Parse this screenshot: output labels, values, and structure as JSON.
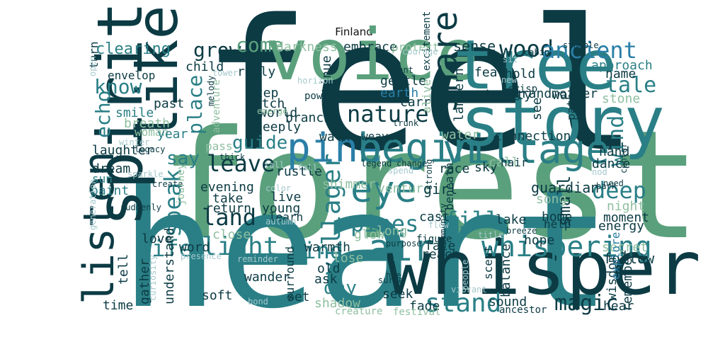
{
  "title": "Finland",
  "palette": {
    "dark": "#0c3b44",
    "teal": "#2a7f86",
    "green": "#5aa07c",
    "blue": "#2a7fa7",
    "light": "#8fbfa0",
    "pale": "#a5c9cd"
  },
  "chart_data": {
    "type": "wordcloud",
    "title": "Finland",
    "words": [
      {
        "text": "forest",
        "weight": 100,
        "color": "green"
      },
      {
        "text": "feel",
        "weight": 80,
        "color": "dark"
      },
      {
        "text": "heart",
        "weight": 72,
        "color": "teal"
      },
      {
        "text": "whisper",
        "weight": 62,
        "color": "dark"
      },
      {
        "text": "voice",
        "weight": 50,
        "color": "green"
      },
      {
        "text": "tree",
        "weight": 48,
        "color": "teal"
      },
      {
        "text": "story",
        "weight": 48,
        "color": "teal"
      },
      {
        "text": "spirit",
        "weight": 44,
        "color": "dark"
      },
      {
        "text": "like",
        "weight": 40,
        "color": "dark"
      },
      {
        "text": "listen",
        "weight": 30,
        "color": "dark"
      },
      {
        "text": "village",
        "weight": 28,
        "color": "teal"
      },
      {
        "text": "pine",
        "weight": 28,
        "color": "blue"
      },
      {
        "text": "begin",
        "weight": 28,
        "color": "teal"
      },
      {
        "text": "air",
        "weight": 26,
        "color": "teal"
      },
      {
        "text": "eye",
        "weight": 26,
        "color": "teal"
      },
      {
        "text": "share",
        "weight": 24,
        "color": "dark"
      },
      {
        "text": "whispering",
        "weight": 20,
        "color": "teal"
      },
      {
        "text": "stand",
        "weight": 18,
        "color": "teal"
      },
      {
        "text": "villager",
        "weight": 18,
        "color": "teal"
      },
      {
        "text": "light",
        "weight": 18,
        "color": "teal"
      },
      {
        "text": "speak",
        "weight": 16,
        "color": "teal"
      },
      {
        "text": "nature",
        "weight": 16,
        "color": "dark"
      },
      {
        "text": "pines",
        "weight": 16,
        "color": "teal"
      },
      {
        "text": "fill",
        "weight": 16,
        "color": "teal"
      },
      {
        "text": "land",
        "weight": 16,
        "color": "dark"
      },
      {
        "text": "leave",
        "weight": 16,
        "color": "dark"
      },
      {
        "text": "find",
        "weight": 16,
        "color": "teal"
      },
      {
        "text": "life",
        "weight": 16,
        "color": "teal"
      },
      {
        "text": "deep",
        "weight": 16,
        "color": "teal"
      },
      {
        "text": "wood",
        "weight": 16,
        "color": "dark"
      },
      {
        "text": "ancient",
        "weight": 16,
        "color": "blue"
      },
      {
        "text": "magic",
        "weight": 15,
        "color": "dark"
      },
      {
        "text": "tale",
        "weight": 15,
        "color": "teal"
      },
      {
        "text": "wind",
        "weight": 15,
        "color": "teal"
      },
      {
        "text": "echo",
        "weight": 14,
        "color": "teal"
      },
      {
        "text": "know",
        "weight": 14,
        "color": "teal"
      },
      {
        "text": "place",
        "weight": 14,
        "color": "teal"
      },
      {
        "text": "grow",
        "weight": 14,
        "color": "dark"
      },
      {
        "text": "come",
        "weight": 14,
        "color": "green"
      },
      {
        "text": "guide",
        "weight": 13,
        "color": "teal"
      },
      {
        "text": "say",
        "weight": 13,
        "color": "teal"
      },
      {
        "text": "day",
        "weight": 13,
        "color": "teal"
      },
      {
        "text": "small",
        "weight": 12,
        "color": "dark"
      },
      {
        "text": "clearing",
        "weight": 11,
        "color": "teal"
      },
      {
        "text": "darkness",
        "weight": 9,
        "color": "light"
      },
      {
        "text": "embrace",
        "weight": 9,
        "color": "dark"
      },
      {
        "text": "protect",
        "weight": 8,
        "color": "light"
      },
      {
        "text": "sense",
        "weight": 10,
        "color": "dark"
      },
      {
        "text": "approach",
        "weight": 9,
        "color": "teal"
      },
      {
        "text": "name",
        "weight": 9,
        "color": "dark"
      },
      {
        "text": "stone",
        "weight": 9,
        "color": "light"
      },
      {
        "text": "child",
        "weight": 9,
        "color": "dark"
      },
      {
        "text": "past",
        "weight": 9,
        "color": "dark"
      },
      {
        "text": "smile",
        "weight": 9,
        "color": "teal"
      },
      {
        "text": "breath",
        "weight": 9,
        "color": "light"
      },
      {
        "text": "woman",
        "weight": 8,
        "color": "light"
      },
      {
        "text": "year",
        "weight": 9,
        "color": "teal"
      },
      {
        "text": "laughter",
        "weight": 9,
        "color": "dark"
      },
      {
        "text": "dream",
        "weight": 9,
        "color": "dark"
      },
      {
        "text": "sun",
        "weight": 8,
        "color": "teal"
      },
      {
        "text": "paint",
        "weight": 9,
        "color": "teal"
      },
      {
        "text": "love",
        "weight": 9,
        "color": "dark"
      },
      {
        "text": "word",
        "weight": 9,
        "color": "dark"
      },
      {
        "text": "evening",
        "weight": 9,
        "color": "dark"
      },
      {
        "text": "take",
        "weight": 9,
        "color": "dark"
      },
      {
        "text": "return",
        "weight": 9,
        "color": "dark"
      },
      {
        "text": "young",
        "weight": 9,
        "color": "dark"
      },
      {
        "text": "live",
        "weight": 9,
        "color": "dark"
      },
      {
        "text": "learn",
        "weight": 8,
        "color": "dark"
      },
      {
        "text": "venture",
        "weight": 9,
        "color": "light"
      },
      {
        "text": "long",
        "weight": 9,
        "color": "light"
      },
      {
        "text": "girl",
        "weight": 10,
        "color": "dark"
      },
      {
        "text": "cast",
        "weight": 9,
        "color": "dark"
      },
      {
        "text": "glow",
        "weight": 9,
        "color": "light"
      },
      {
        "text": "guardian",
        "weight": 10,
        "color": "dark"
      },
      {
        "text": "song",
        "weight": 9,
        "color": "light"
      },
      {
        "text": "home",
        "weight": 9,
        "color": "dark"
      },
      {
        "text": "help",
        "weight": 8,
        "color": "dark"
      },
      {
        "text": "lake",
        "weight": 9,
        "color": "dark"
      },
      {
        "text": "moment",
        "weight": 9,
        "color": "dark"
      },
      {
        "text": "energy",
        "weight": 9,
        "color": "dark"
      },
      {
        "text": "night",
        "weight": 9,
        "color": "light"
      },
      {
        "text": "hope",
        "weight": 9,
        "color": "dark"
      },
      {
        "text": "secret",
        "weight": 9,
        "color": "light"
      },
      {
        "text": "follow",
        "weight": 10,
        "color": "dark"
      },
      {
        "text": "wisdom",
        "weight": 9,
        "color": "dark"
      },
      {
        "text": "explore",
        "weight": 8,
        "color": "blue"
      },
      {
        "text": "remember",
        "weight": 9,
        "color": "dark"
      },
      {
        "text": "hear",
        "weight": 9,
        "color": "dark"
      },
      {
        "text": "sound",
        "weight": 9,
        "color": "dark"
      },
      {
        "text": "ancestor",
        "weight": 7,
        "color": "dark"
      },
      {
        "text": "balance",
        "weight": 9,
        "color": "dark"
      },
      {
        "text": "scent",
        "weight": 8,
        "color": "dark"
      },
      {
        "text": "fade",
        "weight": 9,
        "color": "dark"
      },
      {
        "text": "festival",
        "weight": 7,
        "color": "light"
      },
      {
        "text": "seek",
        "weight": 9,
        "color": "dark"
      },
      {
        "text": "creature",
        "weight": 7,
        "color": "light"
      },
      {
        "text": "shadow",
        "weight": 9,
        "color": "light"
      },
      {
        "text": "ask",
        "weight": 9,
        "color": "dark"
      },
      {
        "text": "lose",
        "weight": 9,
        "color": "light"
      },
      {
        "text": "warmth",
        "weight": 9,
        "color": "dark"
      },
      {
        "text": "close",
        "weight": 9,
        "color": "light"
      },
      {
        "text": "face",
        "weight": 9,
        "color": "dark"
      },
      {
        "text": "reach",
        "weight": 9,
        "color": "dark"
      },
      {
        "text": "figure",
        "weight": 7,
        "color": "dark"
      },
      {
        "text": "surround",
        "weight": 8,
        "color": "dark"
      },
      {
        "text": "gather",
        "weight": 9,
        "color": "dark"
      },
      {
        "text": "wander",
        "weight": 9,
        "color": "dark"
      },
      {
        "text": "soft",
        "weight": 9,
        "color": "dark"
      },
      {
        "text": "time",
        "weight": 9,
        "color": "dark"
      },
      {
        "text": "tell",
        "weight": 9,
        "color": "dark"
      },
      {
        "text": "understand",
        "weight": 9,
        "color": "dark"
      },
      {
        "text": "old",
        "weight": 9,
        "color": "dark"
      },
      {
        "text": "set",
        "weight": 9,
        "color": "dark"
      },
      {
        "text": "reply",
        "weight": 9,
        "color": "dark"
      },
      {
        "text": "step",
        "weight": 9,
        "color": "dark"
      },
      {
        "text": "watch",
        "weight": 9,
        "color": "dark"
      },
      {
        "text": "world",
        "weight": 9,
        "color": "dark"
      },
      {
        "text": "deeply",
        "weight": 9,
        "color": "dark"
      },
      {
        "text": "branch",
        "weight": 9,
        "color": "dark"
      },
      {
        "text": "continue",
        "weight": 9,
        "color": "dark"
      },
      {
        "text": "gentle",
        "weight": 9,
        "color": "dark"
      },
      {
        "text": "earth",
        "weight": 9,
        "color": "blue"
      },
      {
        "text": "carry",
        "weight": 9,
        "color": "dark"
      },
      {
        "text": "walk",
        "weight": 9,
        "color": "dark"
      },
      {
        "text": "weave",
        "weight": 8,
        "color": "dark"
      },
      {
        "text": "water",
        "weight": 9,
        "color": "light"
      },
      {
        "text": "connection",
        "weight": 9,
        "color": "dark"
      },
      {
        "text": "rustle",
        "weight": 9,
        "color": "dark"
      },
      {
        "text": "shimmer",
        "weight": 9,
        "color": "light"
      },
      {
        "text": "race",
        "weight": 9,
        "color": "dark"
      },
      {
        "text": "sky",
        "weight": 9,
        "color": "dark"
      },
      {
        "text": "call",
        "weight": 9,
        "color": "light"
      },
      {
        "text": "hair",
        "weight": 8,
        "color": "dark"
      },
      {
        "text": "dance",
        "weight": 9,
        "color": "dark"
      },
      {
        "text": "hand",
        "weight": 9,
        "color": "dark"
      },
      {
        "text": "path",
        "weight": 8,
        "color": "dark"
      },
      {
        "text": "see",
        "weight": 9,
        "color": "dark"
      },
      {
        "text": "warm",
        "weight": 9,
        "color": "dark"
      },
      {
        "text": "grandmother",
        "weight": 9,
        "color": "dark"
      },
      {
        "text": "beauty",
        "weight": 9,
        "color": "dark"
      },
      {
        "text": "lantern",
        "weight": 9,
        "color": "dark"
      },
      {
        "text": "hold",
        "weight": 9,
        "color": "dark"
      },
      {
        "text": "fear",
        "weight": 9,
        "color": "dark"
      },
      {
        "text": "alive",
        "weight": 8,
        "color": "light"
      },
      {
        "text": "excitement",
        "weight": 7,
        "color": "dark"
      },
      {
        "text": "crisp",
        "weight": 7,
        "color": "dark"
      },
      {
        "text": "new",
        "weight": 6,
        "color": "pale"
      },
      {
        "text": "want",
        "weight": 6,
        "color": "dark"
      },
      {
        "text": "sit",
        "weight": 6,
        "color": "pale"
      },
      {
        "text": "cabin",
        "weight": 6,
        "color": "dark"
      },
      {
        "text": "stumble",
        "weight": 6,
        "color": "dark"
      },
      {
        "text": "courage",
        "weight": 6,
        "color": "pale"
      },
      {
        "text": "tower",
        "weight": 6,
        "color": "pale"
      },
      {
        "text": "turn",
        "weight": 8,
        "color": "dark"
      },
      {
        "text": "open",
        "weight": 6,
        "color": "pale"
      },
      {
        "text": "envelop",
        "weight": 8,
        "color": "dark"
      },
      {
        "text": "horizon",
        "weight": 6,
        "color": "pale"
      },
      {
        "text": "power",
        "weight": 7,
        "color": "dark"
      },
      {
        "text": "melody",
        "weight": 6,
        "color": "dark"
      },
      {
        "text": "emerge",
        "weight": 6,
        "color": "light"
      },
      {
        "text": "trunk",
        "weight": 6,
        "color": "dark"
      },
      {
        "text": "adventure",
        "weight": 7,
        "color": "light"
      },
      {
        "text": "pass",
        "weight": 8,
        "color": "light"
      },
      {
        "text": "winter",
        "weight": 6,
        "color": "pale"
      },
      {
        "text": "legacy",
        "weight": 6,
        "color": "dark"
      },
      {
        "text": "thick",
        "weight": 6,
        "color": "dark"
      },
      {
        "text": "tall",
        "weight": 6,
        "color": "pale"
      },
      {
        "text": "legend",
        "weight": 6,
        "color": "dark"
      },
      {
        "text": "change",
        "weight": 6,
        "color": "dark"
      },
      {
        "text": "fall",
        "weight": 6,
        "color": "pale"
      },
      {
        "text": "spend",
        "weight": 6,
        "color": "pale"
      },
      {
        "text": "strong",
        "weight": 6,
        "color": "dark"
      },
      {
        "text": "beneath",
        "weight": 8,
        "color": "dark"
      },
      {
        "text": "need",
        "weight": 6,
        "color": "dark"
      },
      {
        "text": "nod",
        "weight": 6,
        "color": "pale"
      },
      {
        "text": "bark",
        "weight": 6,
        "color": "dark"
      },
      {
        "text": "center",
        "weight": 6,
        "color": "dark"
      },
      {
        "text": "sparkle",
        "weight": 6,
        "color": "pale"
      },
      {
        "text": "create",
        "weight": 6,
        "color": "dark"
      },
      {
        "text": "suddenly",
        "weight": 6,
        "color": "dark"
      },
      {
        "text": "generation",
        "weight": 6,
        "color": "pale"
      },
      {
        "text": "journey",
        "weight": 7,
        "color": "light"
      },
      {
        "text": "color",
        "weight": 6,
        "color": "pale"
      },
      {
        "text": "autumn",
        "weight": 6,
        "color": "pale"
      },
      {
        "text": "community",
        "weight": 6,
        "color": "dark"
      },
      {
        "text": "flow",
        "weight": 6,
        "color": "pale"
      },
      {
        "text": "breeze",
        "weight": 6,
        "color": "dark"
      },
      {
        "text": "title",
        "weight": 6,
        "color": "pale"
      },
      {
        "text": "purpose",
        "weight": 6,
        "color": "dark"
      },
      {
        "text": "presence",
        "weight": 6,
        "color": "pale"
      },
      {
        "text": "reminder",
        "weight": 6,
        "color": "pale"
      },
      {
        "text": "curiosity",
        "weight": 6,
        "color": "pale"
      },
      {
        "text": "bond",
        "weight": 6,
        "color": "pale"
      },
      {
        "text": "hue",
        "weight": 6,
        "color": "dark"
      },
      {
        "text": "surge",
        "weight": 6,
        "color": "dark"
      },
      {
        "text": "mind",
        "weight": 6,
        "color": "dark"
      },
      {
        "text": "vibrant",
        "weight": 6,
        "color": "pale"
      },
      {
        "text": "people",
        "weight": 6,
        "color": "pale"
      }
    ]
  }
}
